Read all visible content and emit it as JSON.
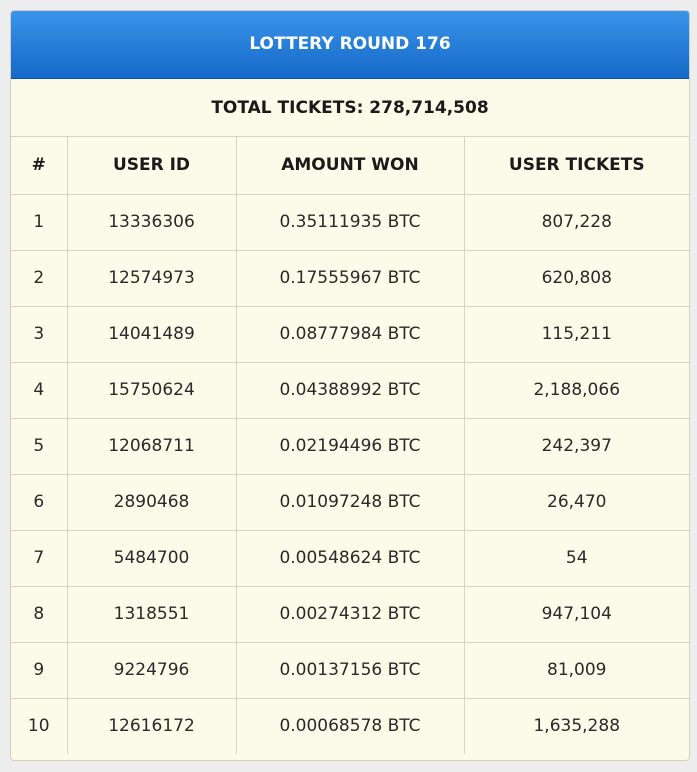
{
  "header": {
    "title": "LOTTERY ROUND 176"
  },
  "summary": {
    "total_tickets": "TOTAL TICKETS: 278,714,508"
  },
  "table": {
    "columns": [
      "#",
      "USER ID",
      "AMOUNT WON",
      "USER TICKETS"
    ],
    "rows": [
      [
        "1",
        "13336306",
        "0.35111935 BTC",
        "807,228"
      ],
      [
        "2",
        "12574973",
        "0.17555967 BTC",
        "620,808"
      ],
      [
        "3",
        "14041489",
        "0.08777984 BTC",
        "115,211"
      ],
      [
        "4",
        "15750624",
        "0.04388992 BTC",
        "2,188,066"
      ],
      [
        "5",
        "12068711",
        "0.02194496 BTC",
        "242,397"
      ],
      [
        "6",
        "2890468",
        "0.01097248 BTC",
        "26,470"
      ],
      [
        "7",
        "5484700",
        "0.00548624 BTC",
        "54"
      ],
      [
        "8",
        "1318551",
        "0.00274312 BTC",
        "947,104"
      ],
      [
        "9",
        "9224796",
        "0.00137156 BTC",
        "81,009"
      ],
      [
        "10",
        "12616172",
        "0.00068578 BTC",
        "1,635,288"
      ]
    ]
  },
  "colors": {
    "header_top": "#3a95ea",
    "header_bottom": "#1569c8",
    "panel_bg": "#fcfbe9"
  }
}
